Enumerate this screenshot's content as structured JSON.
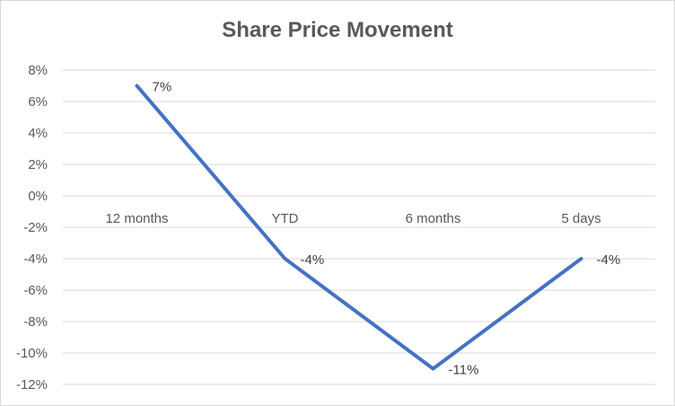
{
  "chart_data": {
    "type": "line",
    "title": "Share Price Movement",
    "categories": [
      "12 months",
      "YTD",
      "6 months",
      "5 days"
    ],
    "series": [
      {
        "values": [
          7,
          -4,
          -11,
          -4
        ],
        "color": "#4472c4"
      }
    ],
    "data_labels": [
      "7%",
      "-4%",
      "-11%",
      "-4%"
    ],
    "ylim": [
      -12,
      8
    ],
    "y_ticks": [
      8,
      6,
      4,
      2,
      0,
      -2,
      -4,
      -6,
      -8,
      -10,
      -12
    ],
    "y_tick_labels": [
      "8%",
      "6%",
      "4%",
      "2%",
      "0%",
      "-2%",
      "-4%",
      "-6%",
      "-8%",
      "-10%",
      "-12%"
    ],
    "grid": true,
    "legend": "none",
    "gridline_color": "#d9d9d9"
  }
}
